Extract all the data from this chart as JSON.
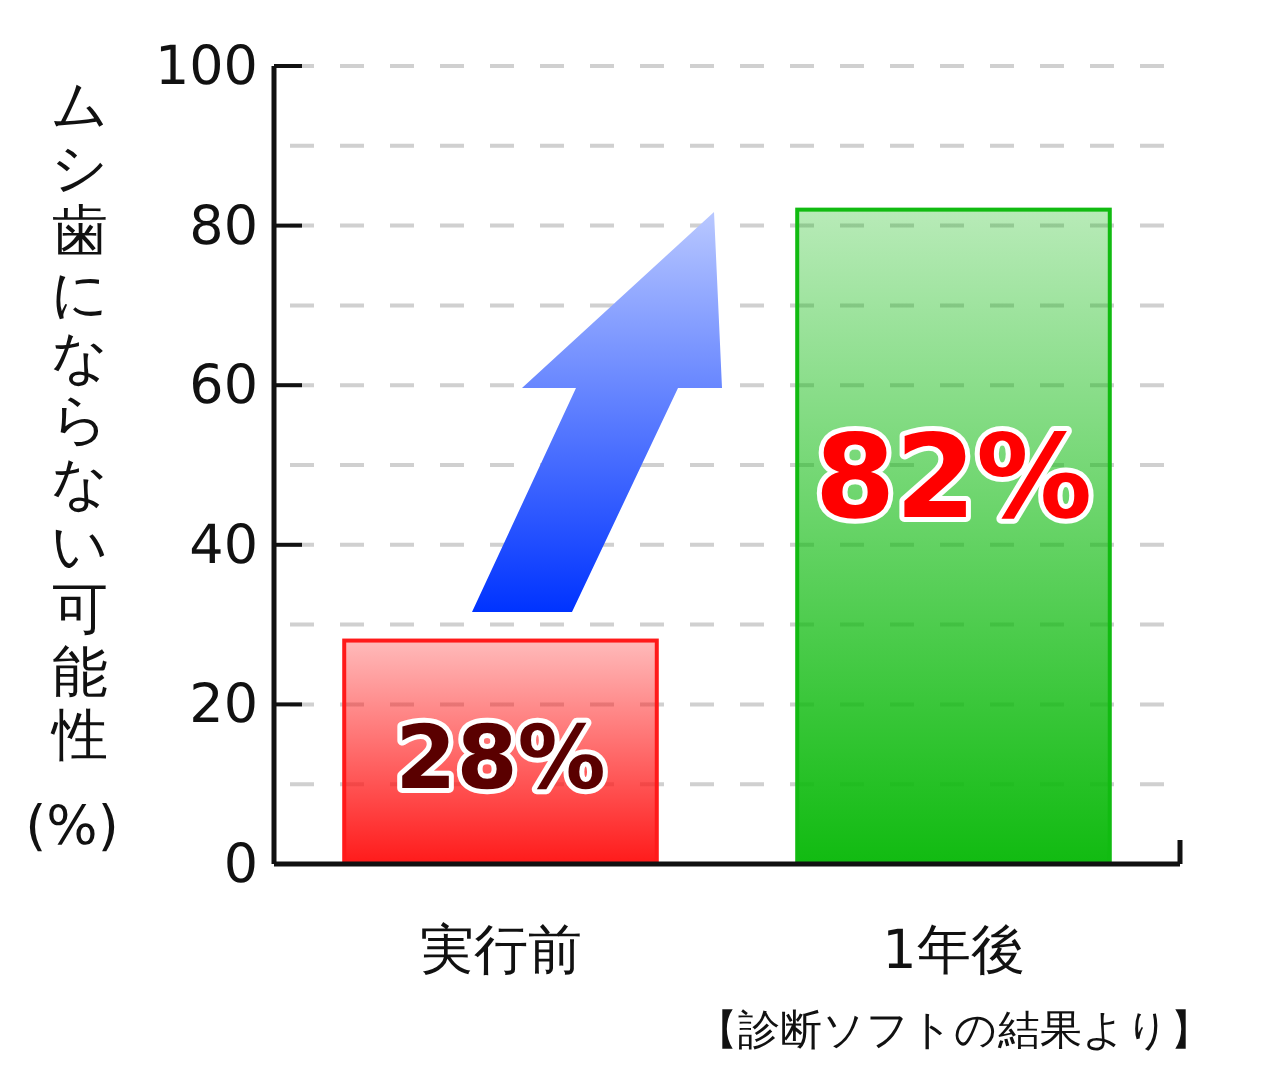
{
  "chart_data": {
    "type": "bar",
    "ylabel": "ムシ歯にならない可能性\n(%)",
    "categories": [
      "実行前",
      "1年後"
    ],
    "values": [
      28,
      82
    ],
    "colors": [
      "#ff1a1a",
      "#11bb11"
    ],
    "value_labels": [
      "28%",
      "82%"
    ],
    "ylim": [
      0,
      100
    ],
    "yticks": [
      0,
      {
        "value": 10,
        "label": null
      },
      20,
      {
        "value": 30,
        "label": null
      },
      40,
      {
        "value": 50,
        "label": null
      },
      60,
      {
        "value": 70,
        "label": null
      },
      80,
      {
        "value": 90,
        "label": null
      },
      100
    ],
    "grid": "y",
    "annotations": [
      "【診断ソフトの結果より】"
    ]
  }
}
